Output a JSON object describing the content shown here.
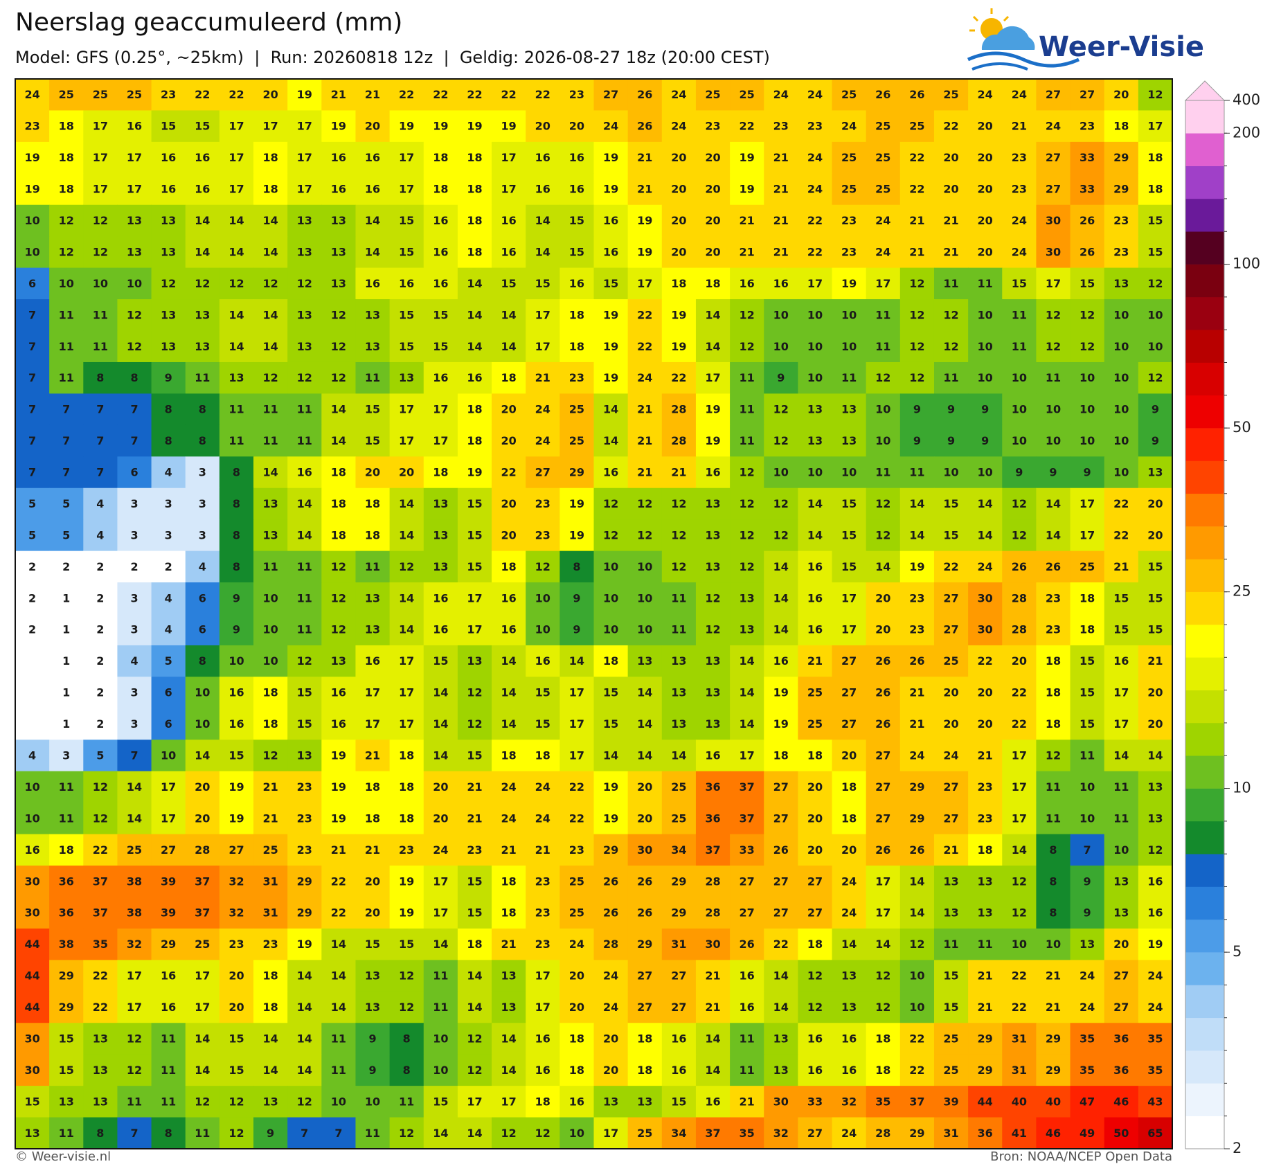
{
  "header": {
    "title": "Neerslag geaccumuleerd (mm)",
    "subtitle": "Model: GFS (0.25°, ~25km)  |  Run: 20260818 12z  |  Geldig: 2026-08-27 18z (20:00 CEST)"
  },
  "logo": {
    "text": "Weer-Visie"
  },
  "map": {
    "rows": [
      [
        24,
        25,
        25,
        25,
        23,
        22,
        22,
        20,
        19,
        21,
        21,
        22,
        22,
        22,
        22,
        22,
        23,
        27,
        26,
        24,
        25,
        25,
        24,
        24,
        25,
        26,
        26,
        25,
        24,
        24,
        27,
        27,
        20,
        12
      ],
      [
        23,
        18,
        17,
        16,
        15,
        15,
        17,
        17,
        17,
        19,
        20,
        19,
        19,
        19,
        19,
        20,
        20,
        24,
        26,
        24,
        23,
        22,
        23,
        23,
        24,
        25,
        25,
        22,
        20,
        21,
        24,
        23,
        18,
        17
      ],
      [
        19,
        18,
        17,
        17,
        16,
        16,
        17,
        18,
        17,
        16,
        16,
        17,
        18,
        18,
        17,
        16,
        16,
        19,
        21,
        20,
        20,
        19,
        21,
        24,
        25,
        25,
        22,
        20,
        20,
        23,
        27,
        33,
        29,
        18
      ],
      [
        19,
        18,
        17,
        17,
        16,
        16,
        17,
        18,
        17,
        16,
        16,
        17,
        18,
        18,
        17,
        16,
        16,
        19,
        21,
        20,
        20,
        19,
        21,
        24,
        25,
        25,
        22,
        20,
        20,
        23,
        27,
        33,
        29,
        18
      ],
      [
        10,
        12,
        12,
        13,
        13,
        14,
        14,
        14,
        13,
        13,
        14,
        15,
        16,
        18,
        16,
        14,
        15,
        16,
        19,
        20,
        20,
        21,
        21,
        22,
        23,
        24,
        21,
        21,
        20,
        24,
        30,
        26,
        23,
        15
      ],
      [
        10,
        12,
        12,
        13,
        13,
        14,
        14,
        14,
        13,
        13,
        14,
        15,
        16,
        18,
        16,
        14,
        15,
        16,
        19,
        20,
        20,
        21,
        21,
        22,
        23,
        24,
        21,
        21,
        20,
        24,
        30,
        26,
        23,
        15
      ],
      [
        6,
        10,
        10,
        10,
        12,
        12,
        12,
        12,
        12,
        13,
        16,
        16,
        16,
        14,
        15,
        15,
        16,
        15,
        17,
        18,
        18,
        16,
        16,
        17,
        19,
        17,
        12,
        11,
        11,
        15,
        17,
        15,
        13,
        12
      ],
      [
        7,
        11,
        11,
        12,
        13,
        13,
        14,
        14,
        13,
        12,
        13,
        15,
        15,
        14,
        14,
        17,
        18,
        19,
        22,
        19,
        14,
        12,
        10,
        10,
        10,
        11,
        12,
        12,
        10,
        11,
        12,
        12,
        10,
        10
      ],
      [
        7,
        11,
        11,
        12,
        13,
        13,
        14,
        14,
        13,
        12,
        13,
        15,
        15,
        14,
        14,
        17,
        18,
        19,
        22,
        19,
        14,
        12,
        10,
        10,
        10,
        11,
        12,
        12,
        10,
        11,
        12,
        12,
        10,
        10
      ],
      [
        7,
        11,
        8,
        8,
        9,
        11,
        13,
        12,
        12,
        12,
        11,
        13,
        16,
        16,
        18,
        21,
        23,
        19,
        24,
        22,
        17,
        11,
        9,
        10,
        11,
        12,
        12,
        11,
        10,
        10,
        11,
        10,
        10,
        12
      ],
      [
        7,
        7,
        7,
        7,
        8,
        8,
        11,
        11,
        11,
        14,
        15,
        17,
        17,
        18,
        20,
        24,
        25,
        14,
        21,
        28,
        19,
        11,
        12,
        13,
        13,
        10,
        9,
        9,
        9,
        10,
        10,
        10,
        10,
        9
      ],
      [
        7,
        7,
        7,
        7,
        8,
        8,
        11,
        11,
        11,
        14,
        15,
        17,
        17,
        18,
        20,
        24,
        25,
        14,
        21,
        28,
        19,
        11,
        12,
        13,
        13,
        10,
        9,
        9,
        9,
        10,
        10,
        10,
        10,
        9
      ],
      [
        7,
        7,
        7,
        6,
        4,
        3,
        8,
        14,
        16,
        18,
        20,
        20,
        18,
        19,
        22,
        27,
        29,
        16,
        21,
        21,
        16,
        12,
        10,
        10,
        10,
        11,
        11,
        10,
        10,
        9,
        9,
        9,
        10,
        13
      ],
      [
        5,
        5,
        4,
        3,
        3,
        3,
        8,
        13,
        14,
        18,
        18,
        14,
        13,
        15,
        20,
        23,
        19,
        12,
        12,
        12,
        13,
        12,
        12,
        14,
        15,
        12,
        14,
        15,
        14,
        12,
        14,
        17,
        22,
        20
      ],
      [
        5,
        5,
        4,
        3,
        3,
        3,
        8,
        13,
        14,
        18,
        18,
        14,
        13,
        15,
        20,
        23,
        19,
        12,
        12,
        12,
        13,
        12,
        12,
        14,
        15,
        12,
        14,
        15,
        14,
        12,
        14,
        17,
        22,
        20
      ],
      [
        2,
        2,
        2,
        2,
        2,
        4,
        8,
        11,
        11,
        12,
        11,
        12,
        13,
        15,
        18,
        12,
        8,
        10,
        10,
        12,
        13,
        12,
        14,
        16,
        15,
        14,
        19,
        22,
        24,
        26,
        26,
        25,
        21,
        15
      ],
      [
        2,
        1,
        2,
        3,
        4,
        6,
        9,
        10,
        11,
        12,
        13,
        14,
        16,
        17,
        16,
        10,
        9,
        10,
        10,
        11,
        12,
        13,
        14,
        16,
        17,
        20,
        23,
        27,
        30,
        28,
        23,
        18,
        15,
        15
      ],
      [
        2,
        1,
        2,
        3,
        4,
        6,
        9,
        10,
        11,
        12,
        13,
        14,
        16,
        17,
        16,
        10,
        9,
        10,
        10,
        11,
        12,
        13,
        14,
        16,
        17,
        20,
        23,
        27,
        30,
        28,
        23,
        18,
        15,
        15
      ],
      [
        null,
        1,
        2,
        4,
        5,
        8,
        10,
        10,
        12,
        13,
        16,
        17,
        15,
        13,
        14,
        16,
        14,
        18,
        13,
        13,
        13,
        14,
        16,
        21,
        27,
        26,
        26,
        25,
        22,
        20,
        18,
        15,
        16,
        21
      ],
      [
        null,
        1,
        2,
        3,
        6,
        10,
        16,
        18,
        15,
        16,
        17,
        17,
        14,
        12,
        14,
        15,
        17,
        15,
        14,
        13,
        13,
        14,
        19,
        25,
        27,
        26,
        21,
        20,
        20,
        22,
        18,
        15,
        17,
        20
      ],
      [
        null,
        1,
        2,
        3,
        6,
        10,
        16,
        18,
        15,
        16,
        17,
        17,
        14,
        12,
        14,
        15,
        17,
        15,
        14,
        13,
        13,
        14,
        19,
        25,
        27,
        26,
        21,
        20,
        20,
        22,
        18,
        15,
        17,
        20
      ],
      [
        4,
        3,
        5,
        7,
        10,
        14,
        15,
        12,
        13,
        19,
        21,
        18,
        14,
        15,
        18,
        18,
        17,
        14,
        14,
        14,
        16,
        17,
        18,
        18,
        20,
        27,
        24,
        24,
        21,
        17,
        12,
        11,
        14,
        14
      ],
      [
        10,
        11,
        12,
        14,
        17,
        20,
        19,
        21,
        23,
        19,
        18,
        18,
        20,
        21,
        24,
        24,
        22,
        19,
        20,
        25,
        36,
        37,
        27,
        20,
        18,
        27,
        29,
        27,
        23,
        17,
        11,
        10,
        11,
        13
      ],
      [
        10,
        11,
        12,
        14,
        17,
        20,
        19,
        21,
        23,
        19,
        18,
        18,
        20,
        21,
        24,
        24,
        22,
        19,
        20,
        25,
        36,
        37,
        27,
        20,
        18,
        27,
        29,
        27,
        23,
        17,
        11,
        10,
        11,
        13
      ],
      [
        16,
        18,
        22,
        25,
        27,
        28,
        27,
        25,
        23,
        21,
        21,
        23,
        24,
        23,
        21,
        21,
        23,
        29,
        30,
        34,
        37,
        33,
        26,
        20,
        20,
        26,
        26,
        21,
        18,
        14,
        8,
        7,
        10,
        12
      ],
      [
        30,
        36,
        37,
        38,
        39,
        37,
        32,
        31,
        29,
        22,
        20,
        19,
        17,
        15,
        18,
        23,
        25,
        26,
        26,
        29,
        28,
        27,
        27,
        27,
        24,
        17,
        14,
        13,
        13,
        12,
        8,
        9,
        13,
        16
      ],
      [
        30,
        36,
        37,
        38,
        39,
        37,
        32,
        31,
        29,
        22,
        20,
        19,
        17,
        15,
        18,
        23,
        25,
        26,
        26,
        29,
        28,
        27,
        27,
        27,
        24,
        17,
        14,
        13,
        13,
        12,
        8,
        9,
        13,
        16
      ],
      [
        44,
        38,
        35,
        32,
        29,
        25,
        23,
        23,
        19,
        14,
        15,
        15,
        14,
        18,
        21,
        23,
        24,
        28,
        29,
        31,
        30,
        26,
        22,
        18,
        14,
        14,
        12,
        11,
        11,
        10,
        10,
        13,
        20,
        19
      ],
      [
        44,
        29,
        22,
        17,
        16,
        17,
        20,
        18,
        14,
        14,
        13,
        12,
        11,
        14,
        13,
        17,
        20,
        24,
        27,
        27,
        21,
        16,
        14,
        12,
        13,
        12,
        10,
        15,
        21,
        22,
        21,
        24,
        27,
        24
      ],
      [
        44,
        29,
        22,
        17,
        16,
        17,
        20,
        18,
        14,
        14,
        13,
        12,
        11,
        14,
        13,
        17,
        20,
        24,
        27,
        27,
        21,
        16,
        14,
        12,
        13,
        12,
        10,
        15,
        21,
        22,
        21,
        24,
        27,
        24
      ],
      [
        30,
        15,
        13,
        12,
        11,
        14,
        15,
        14,
        14,
        11,
        9,
        8,
        10,
        12,
        14,
        16,
        18,
        20,
        18,
        16,
        14,
        11,
        13,
        16,
        16,
        18,
        22,
        25,
        29,
        31,
        29,
        35,
        36,
        35
      ],
      [
        30,
        15,
        13,
        12,
        11,
        14,
        15,
        14,
        14,
        11,
        9,
        8,
        10,
        12,
        14,
        16,
        18,
        20,
        18,
        16,
        14,
        11,
        13,
        16,
        16,
        18,
        22,
        25,
        29,
        31,
        29,
        35,
        36,
        35
      ],
      [
        15,
        13,
        13,
        11,
        11,
        12,
        12,
        13,
        12,
        10,
        10,
        11,
        15,
        17,
        17,
        18,
        16,
        13,
        13,
        15,
        16,
        21,
        30,
        33,
        32,
        35,
        37,
        39,
        44,
        40,
        40,
        47,
        46,
        43
      ],
      [
        13,
        11,
        8,
        7,
        8,
        11,
        12,
        9,
        7,
        7,
        11,
        12,
        14,
        14,
        12,
        12,
        10,
        17,
        25,
        34,
        37,
        35,
        32,
        27,
        24,
        28,
        29,
        31,
        36,
        41,
        46,
        49,
        50,
        65
      ]
    ]
  },
  "colorbar": {
    "levels": [
      2,
      2.5,
      3,
      3.5,
      4,
      4.5,
      5,
      6,
      7,
      8,
      9,
      10,
      12,
      14,
      16,
      18,
      20,
      25,
      30,
      35,
      40,
      45,
      50,
      60,
      70,
      80,
      90,
      100,
      125,
      150,
      175,
      200,
      400
    ],
    "colors": [
      "#ffffff",
      "#ecf4fd",
      "#d6e8fa",
      "#c0ddf8",
      "#a0ccf4",
      "#6cb2ee",
      "#4c9ce8",
      "#2a80dc",
      "#1464c8",
      "#148a2c",
      "#3aa830",
      "#6ec020",
      "#9fd400",
      "#c4e000",
      "#e4f000",
      "#ffff00",
      "#ffd800",
      "#ffbb00",
      "#ff9a00",
      "#ff7a00",
      "#ff4400",
      "#ff2200",
      "#ee0000",
      "#d80000",
      "#b80000",
      "#9a0010",
      "#7a0010",
      "#550020",
      "#6a1a9a",
      "#a040c8",
      "#e060d0",
      "#ffd0ee"
    ],
    "extend_color": "#ffd0ee",
    "ticks": [
      2,
      5,
      10,
      25,
      50,
      100,
      200,
      400
    ]
  },
  "footer": {
    "left": "© Weer-visie.nl",
    "right": "Bron: NOAA/NCEP Open Data"
  }
}
